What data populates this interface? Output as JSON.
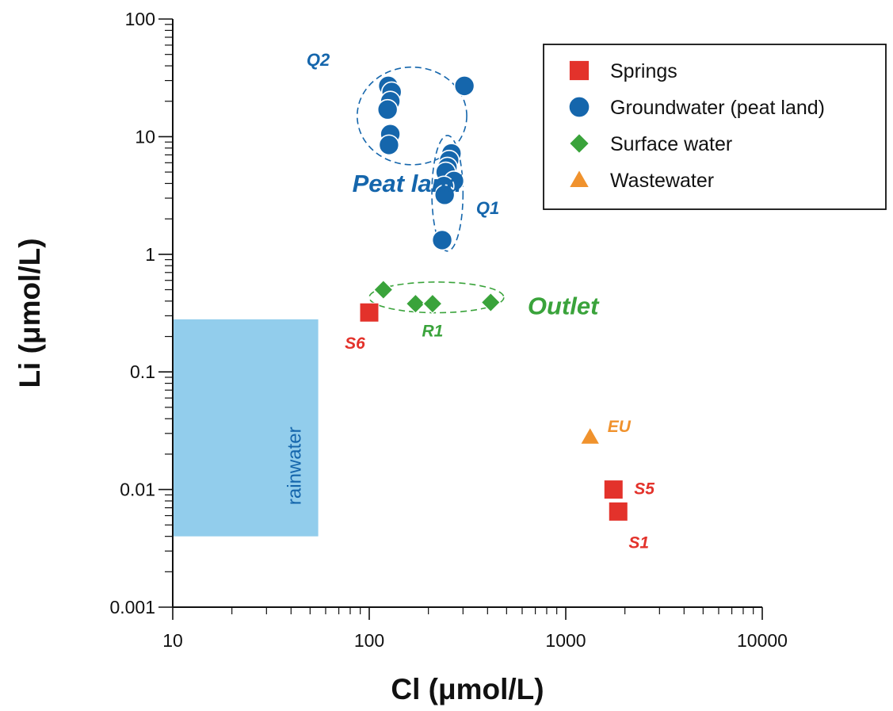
{
  "chart_data": {
    "type": "scatter",
    "xlabel": "Cl (μmol/L)",
    "ylabel": "Li (μmol/L)",
    "xscale": "log",
    "yscale": "log",
    "xlim": [
      10,
      10000
    ],
    "ylim": [
      0.001,
      100
    ],
    "xticks": [
      "10",
      "100",
      "1000",
      "10000"
    ],
    "yticks": [
      "0.001",
      "0.01",
      "0.1",
      "1",
      "10",
      "100"
    ],
    "grid": false,
    "legend_position": "top-right",
    "colors": {
      "springs": "#e3322b",
      "groundwater": "#1566ac",
      "surface": "#3aa33b",
      "wastewater": "#f0922d",
      "rain_box": "#92cdec",
      "rain_text": "#1566ac"
    },
    "series": [
      {
        "name": "Springs",
        "marker": "square",
        "points": [
          {
            "x": 100,
            "y": 0.32,
            "label": "S6"
          },
          {
            "x": 1750,
            "y": 0.01,
            "label": "S5"
          },
          {
            "x": 1850,
            "y": 0.0065,
            "label": "S1"
          }
        ]
      },
      {
        "name": "Groundwater (peat land)",
        "marker": "circle",
        "points": [
          {
            "x": 125,
            "y": 27
          },
          {
            "x": 130,
            "y": 24
          },
          {
            "x": 128,
            "y": 20
          },
          {
            "x": 124,
            "y": 17
          },
          {
            "x": 128,
            "y": 10.5
          },
          {
            "x": 126,
            "y": 8.5
          },
          {
            "x": 305,
            "y": 27
          },
          {
            "x": 262,
            "y": 7.2
          },
          {
            "x": 255,
            "y": 6.3
          },
          {
            "x": 250,
            "y": 5.5
          },
          {
            "x": 245,
            "y": 5.0
          },
          {
            "x": 270,
            "y": 4.2
          },
          {
            "x": 240,
            "y": 3.8
          },
          {
            "x": 242,
            "y": 3.2
          },
          {
            "x": 235,
            "y": 1.32
          }
        ]
      },
      {
        "name": "Surface water",
        "marker": "diamond",
        "points": [
          {
            "x": 118,
            "y": 0.5
          },
          {
            "x": 172,
            "y": 0.38
          },
          {
            "x": 210,
            "y": 0.38
          },
          {
            "x": 415,
            "y": 0.39
          }
        ]
      },
      {
        "name": "Wastewater",
        "marker": "triangle",
        "points": [
          {
            "x": 1330,
            "y": 0.028,
            "label": "EU"
          }
        ]
      }
    ],
    "shaded_regions": [
      {
        "label": "rainwater",
        "x": [
          10,
          55
        ],
        "y": [
          0.004,
          0.28
        ]
      }
    ],
    "annotations": [
      {
        "text": "Q2",
        "x": 55,
        "y": 40
      },
      {
        "text": "Peat land",
        "x": 82,
        "y": 3.4
      },
      {
        "text": "Q1",
        "x": 350,
        "y": 2.2
      },
      {
        "text": "Outlet",
        "x": 640,
        "y": 0.31
      },
      {
        "text": "R1",
        "x": 210,
        "y": 0.2
      }
    ],
    "cluster_outlines": [
      {
        "name": "Q2",
        "center": [
          165,
          15
        ],
        "radius_factor": [
          1.9,
          2.6
        ]
      },
      {
        "name": "Q1",
        "center": [
          250,
          3.3
        ],
        "radius_factor": [
          1.2,
          3.1
        ]
      },
      {
        "name": "Outlet",
        "center": [
          220,
          0.43
        ],
        "radius_factor": [
          2.2,
          1.35
        ]
      }
    ]
  }
}
